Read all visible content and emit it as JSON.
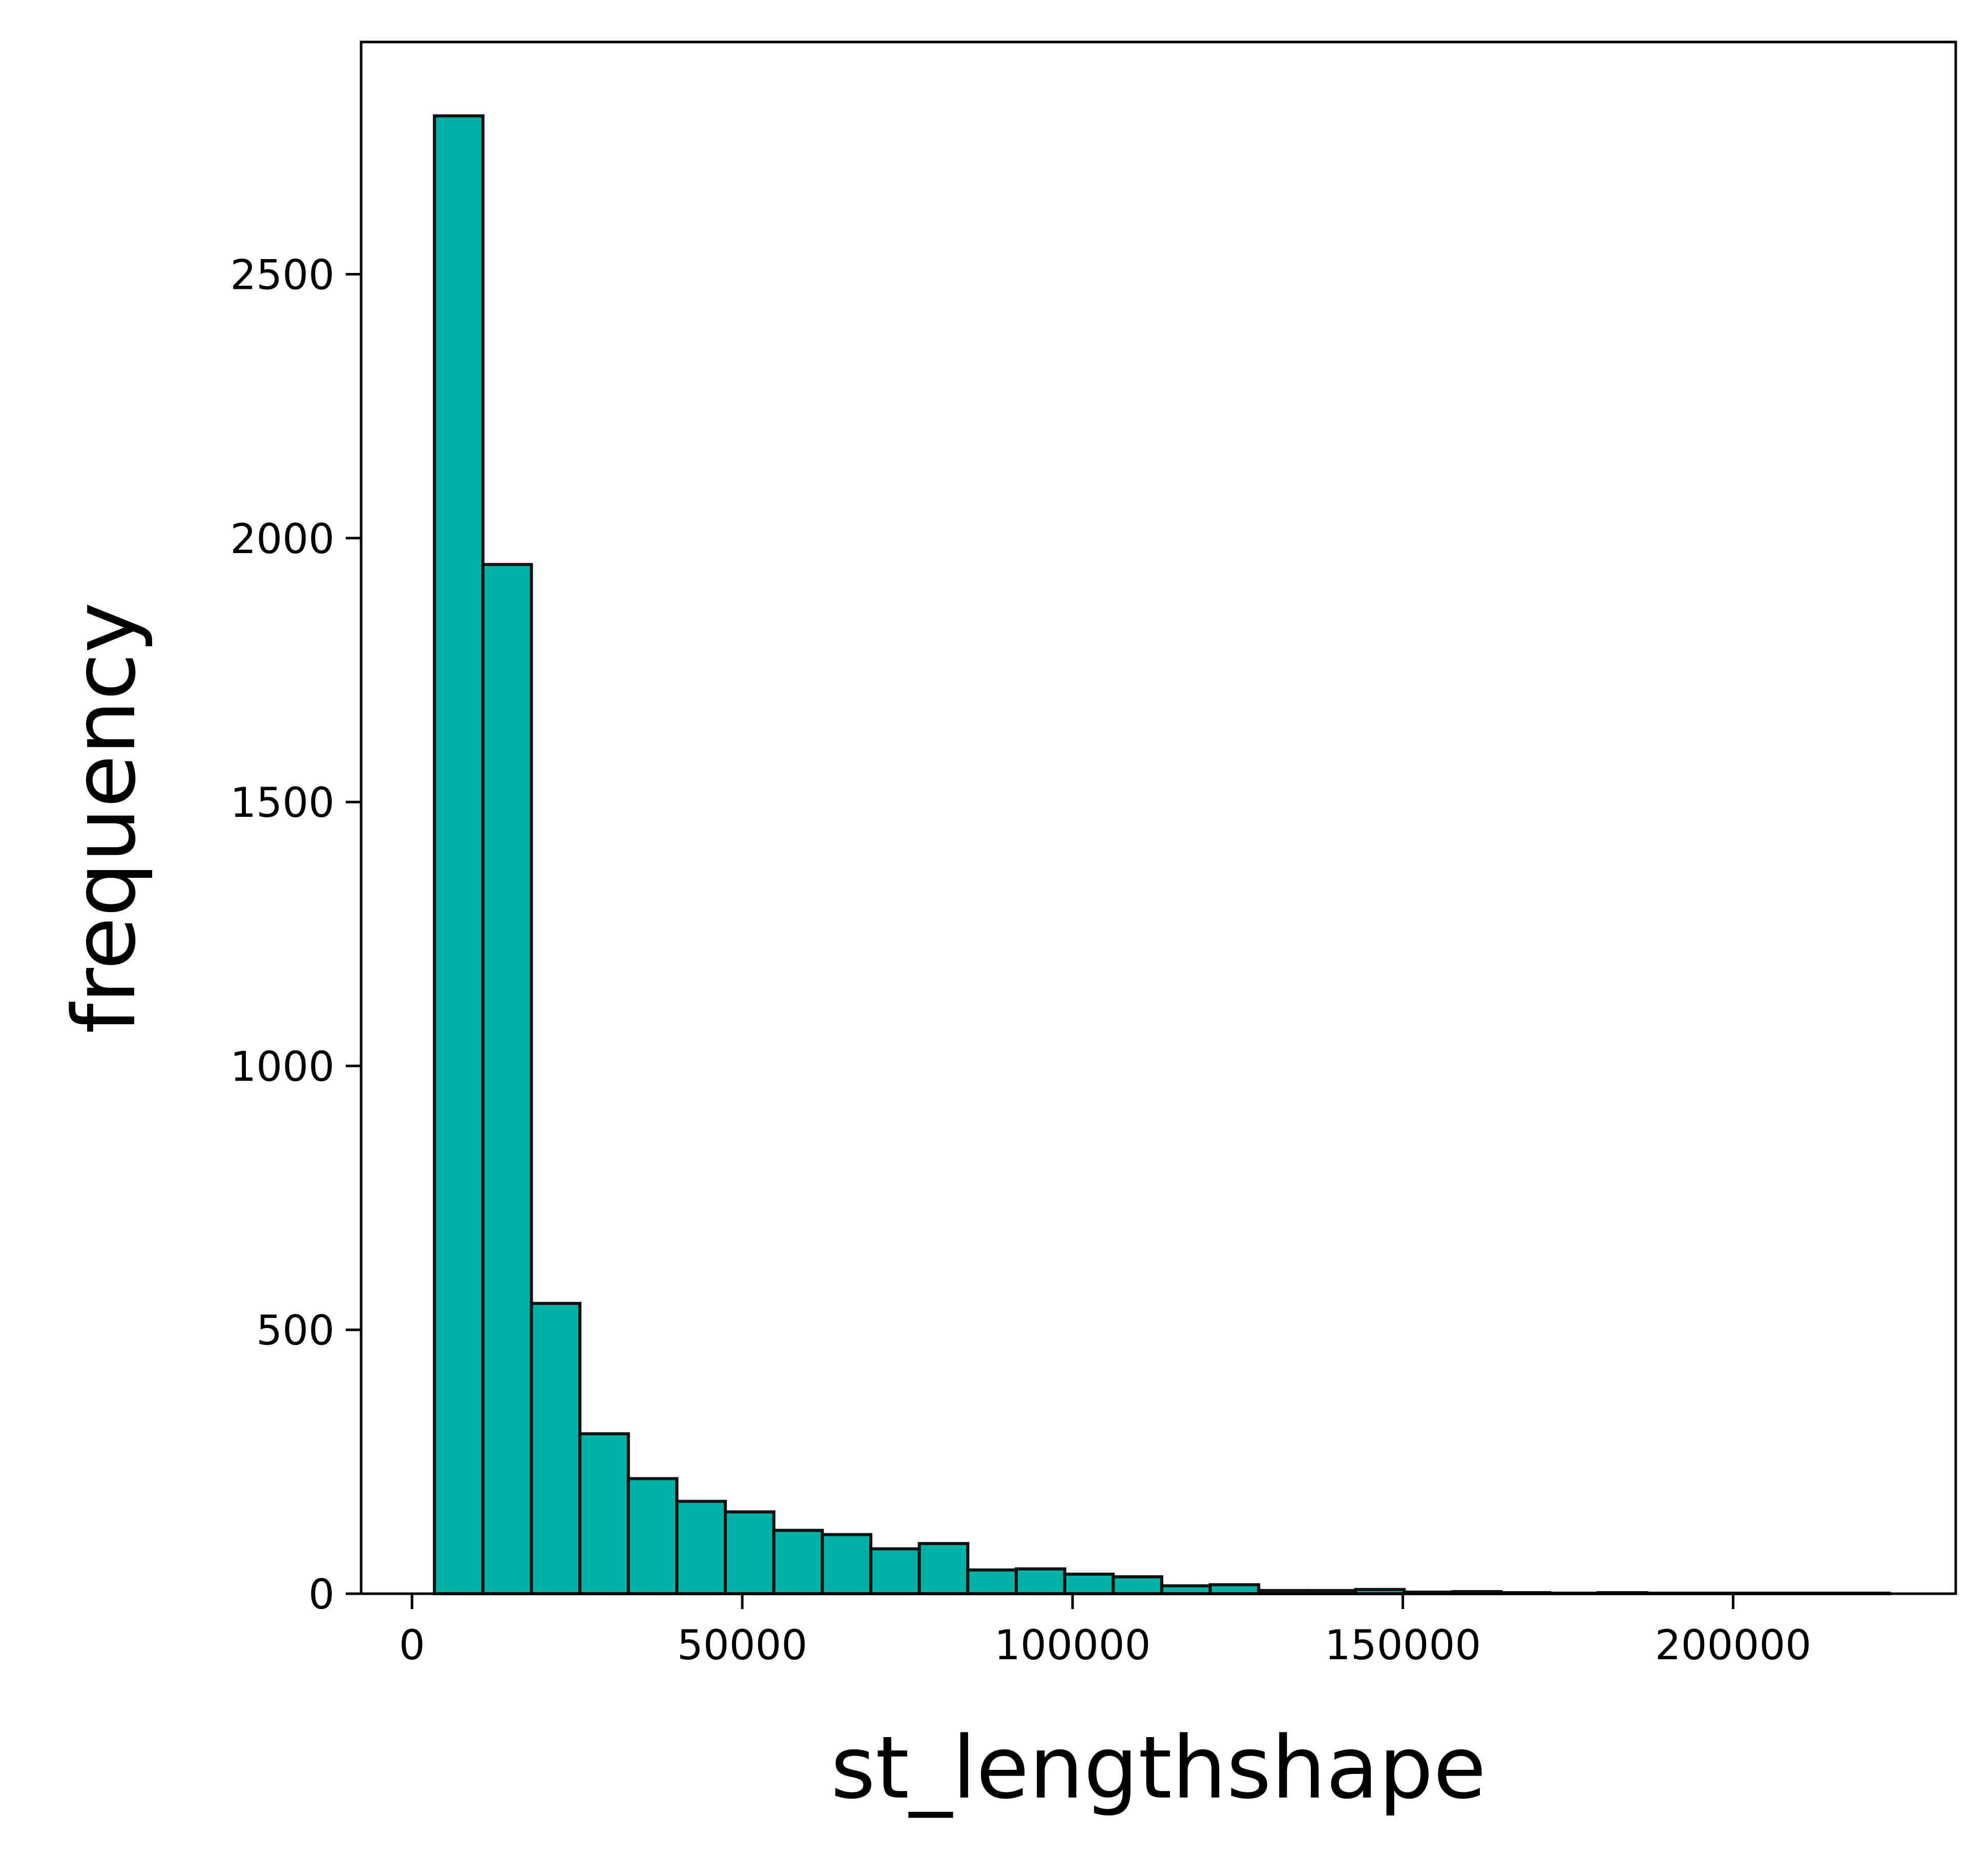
{
  "chart_data": {
    "type": "bar",
    "title": "",
    "xlabel": "st_lengthshape",
    "ylabel": "frequency",
    "bar_color": "#00b2a6",
    "edge_color": "#111111",
    "xlim": [
      -7700,
      233700
    ],
    "ylim": [
      0,
      2940
    ],
    "xticks": [
      0,
      50000,
      100000,
      150000,
      200000
    ],
    "yticks": [
      0,
      500,
      1000,
      1500,
      2000,
      2500
    ],
    "xtick_labels": [
      "0",
      "50000",
      "100000",
      "150000",
      "200000"
    ],
    "ytick_labels": [
      "0",
      "500",
      "1000",
      "1500",
      "2000",
      "2500"
    ],
    "bins": [
      {
        "x0": 3400,
        "x1": 10740,
        "count": 2800
      },
      {
        "x0": 10740,
        "x1": 18080,
        "count": 1950
      },
      {
        "x0": 18080,
        "x1": 25420,
        "count": 550
      },
      {
        "x0": 25420,
        "x1": 32760,
        "count": 303
      },
      {
        "x0": 32760,
        "x1": 40100,
        "count": 218
      },
      {
        "x0": 40100,
        "x1": 47440,
        "count": 175
      },
      {
        "x0": 47440,
        "x1": 54780,
        "count": 155
      },
      {
        "x0": 54780,
        "x1": 62120,
        "count": 120
      },
      {
        "x0": 62120,
        "x1": 69460,
        "count": 112
      },
      {
        "x0": 69460,
        "x1": 76800,
        "count": 85
      },
      {
        "x0": 76800,
        "x1": 84140,
        "count": 95
      },
      {
        "x0": 84140,
        "x1": 91480,
        "count": 45
      },
      {
        "x0": 91480,
        "x1": 98820,
        "count": 47
      },
      {
        "x0": 98820,
        "x1": 106160,
        "count": 37
      },
      {
        "x0": 106160,
        "x1": 113500,
        "count": 32
      },
      {
        "x0": 113500,
        "x1": 120840,
        "count": 15
      },
      {
        "x0": 120840,
        "x1": 128180,
        "count": 17
      },
      {
        "x0": 128180,
        "x1": 135520,
        "count": 6
      },
      {
        "x0": 135520,
        "x1": 142860,
        "count": 6
      },
      {
        "x0": 142860,
        "x1": 150200,
        "count": 8
      },
      {
        "x0": 150200,
        "x1": 157540,
        "count": 3
      },
      {
        "x0": 157540,
        "x1": 164880,
        "count": 4
      },
      {
        "x0": 164880,
        "x1": 172220,
        "count": 2
      },
      {
        "x0": 172220,
        "x1": 179560,
        "count": 1
      },
      {
        "x0": 179560,
        "x1": 186900,
        "count": 2
      },
      {
        "x0": 186900,
        "x1": 194240,
        "count": 1
      },
      {
        "x0": 194240,
        "x1": 201580,
        "count": 1
      },
      {
        "x0": 201580,
        "x1": 208920,
        "count": 1
      },
      {
        "x0": 208920,
        "x1": 216260,
        "count": 1
      },
      {
        "x0": 216260,
        "x1": 223600,
        "count": 1
      }
    ]
  }
}
